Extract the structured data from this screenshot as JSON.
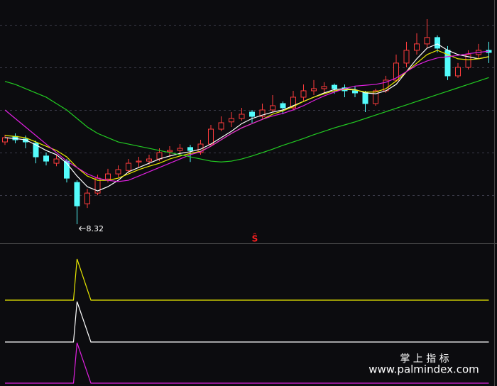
{
  "chart_data": {
    "type": "candlestick",
    "ylim": [
      7.87,
      13.58
    ],
    "grid_lines": [
      9,
      10,
      11,
      12,
      13
    ],
    "up_color": "#ff3c3c",
    "down_color": "#54fcfc",
    "candles": [
      [
        10.25,
        10.42,
        10.18,
        10.35
      ],
      [
        10.38,
        10.45,
        10.22,
        10.3
      ],
      [
        10.32,
        10.4,
        10.1,
        10.25
      ],
      [
        10.22,
        10.28,
        9.75,
        9.9
      ],
      [
        9.92,
        10.0,
        9.7,
        9.8
      ],
      [
        9.75,
        9.95,
        9.68,
        9.85
      ],
      [
        9.8,
        9.85,
        9.3,
        9.4
      ],
      [
        9.3,
        9.35,
        8.32,
        8.75
      ],
      [
        8.8,
        9.15,
        8.7,
        9.05
      ],
      [
        9.05,
        9.48,
        9.0,
        9.4
      ],
      [
        9.38,
        9.62,
        9.3,
        9.5
      ],
      [
        9.5,
        9.7,
        9.42,
        9.6
      ],
      [
        9.58,
        9.85,
        9.52,
        9.75
      ],
      [
        9.78,
        9.9,
        9.65,
        9.8
      ],
      [
        9.8,
        9.95,
        9.72,
        9.85
      ],
      [
        9.85,
        10.1,
        9.8,
        10.0
      ],
      [
        10.02,
        10.15,
        9.9,
        10.05
      ],
      [
        10.05,
        10.2,
        9.95,
        10.1
      ],
      [
        10.12,
        10.18,
        9.78,
        10.05
      ],
      [
        10.0,
        10.3,
        9.95,
        10.2
      ],
      [
        10.2,
        10.65,
        10.15,
        10.55
      ],
      [
        10.55,
        10.85,
        10.5,
        10.7
      ],
      [
        10.72,
        10.95,
        10.6,
        10.8
      ],
      [
        10.8,
        11.05,
        10.75,
        10.9
      ],
      [
        10.95,
        11.0,
        10.7,
        10.85
      ],
      [
        10.85,
        11.15,
        10.8,
        11.0
      ],
      [
        11.0,
        11.35,
        10.95,
        11.1
      ],
      [
        11.15,
        11.2,
        10.9,
        11.05
      ],
      [
        11.05,
        11.45,
        11.0,
        11.3
      ],
      [
        11.3,
        11.6,
        11.2,
        11.45
      ],
      [
        11.45,
        11.7,
        11.35,
        11.5
      ],
      [
        11.5,
        11.65,
        11.4,
        11.55
      ],
      [
        11.58,
        11.62,
        11.38,
        11.5
      ],
      [
        11.52,
        11.6,
        11.3,
        11.45
      ],
      [
        11.45,
        11.55,
        11.3,
        11.4
      ],
      [
        11.42,
        11.45,
        10.95,
        11.15
      ],
      [
        11.15,
        11.5,
        11.1,
        11.45
      ],
      [
        11.45,
        11.8,
        11.4,
        11.7
      ],
      [
        11.7,
        12.3,
        11.65,
        12.1
      ],
      [
        12.1,
        12.6,
        12.0,
        12.4
      ],
      [
        12.4,
        12.8,
        12.3,
        12.55
      ],
      [
        12.55,
        13.13,
        12.45,
        12.7
      ],
      [
        12.7,
        12.75,
        12.35,
        12.45
      ],
      [
        12.4,
        12.5,
        11.7,
        11.8
      ],
      [
        11.8,
        12.1,
        11.75,
        12.0
      ],
      [
        12.0,
        12.4,
        11.95,
        12.3
      ],
      [
        12.3,
        12.55,
        12.2,
        12.4
      ],
      [
        12.4,
        12.6,
        12.1,
        12.35
      ]
    ],
    "moving_averages": [
      {
        "color": "#ffffff",
        "values": [
          10.35,
          10.33,
          10.3,
          10.18,
          10.05,
          9.95,
          9.75,
          9.45,
          9.2,
          9.1,
          9.2,
          9.35,
          9.55,
          9.65,
          9.75,
          9.85,
          9.92,
          9.98,
          10.02,
          10.08,
          10.2,
          10.35,
          10.5,
          10.68,
          10.8,
          10.88,
          10.95,
          11.0,
          11.1,
          11.2,
          11.3,
          11.4,
          11.48,
          11.5,
          11.48,
          11.4,
          11.38,
          11.45,
          11.6,
          11.9,
          12.2,
          12.45,
          12.55,
          12.4,
          12.3,
          12.25,
          12.2,
          12.25
        ]
      },
      {
        "color": "#e8e800",
        "values": [
          10.4,
          10.38,
          10.35,
          10.25,
          10.15,
          10.05,
          9.9,
          9.65,
          9.45,
          9.35,
          9.35,
          9.4,
          9.5,
          9.6,
          9.68,
          9.75,
          9.85,
          9.92,
          9.98,
          10.03,
          10.15,
          10.3,
          10.45,
          10.58,
          10.68,
          10.78,
          10.9,
          10.98,
          11.08,
          11.2,
          11.3,
          11.38,
          11.45,
          11.48,
          11.47,
          11.42,
          11.42,
          11.5,
          11.68,
          11.9,
          12.1,
          12.3,
          12.4,
          12.3,
          12.2,
          12.18,
          12.2,
          12.25
        ]
      },
      {
        "color": "#e020e0",
        "values": [
          11.0,
          10.8,
          10.6,
          10.4,
          10.2,
          10.0,
          9.8,
          9.65,
          9.5,
          9.4,
          9.35,
          9.32,
          9.35,
          9.45,
          9.55,
          9.65,
          9.75,
          9.85,
          9.95,
          10.02,
          10.15,
          10.3,
          10.45,
          10.58,
          10.68,
          10.78,
          10.86,
          10.92,
          11.0,
          11.1,
          11.22,
          11.33,
          11.42,
          11.5,
          11.56,
          11.58,
          11.6,
          11.65,
          11.75,
          11.9,
          12.05,
          12.15,
          12.22,
          12.25,
          12.28,
          12.32,
          12.35,
          12.38
        ]
      },
      {
        "color": "#22cc22",
        "values": [
          11.67,
          11.6,
          11.5,
          11.4,
          11.3,
          11.15,
          11.0,
          10.8,
          10.6,
          10.45,
          10.35,
          10.25,
          10.2,
          10.15,
          10.1,
          10.05,
          10.0,
          9.95,
          9.9,
          9.85,
          9.8,
          9.78,
          9.8,
          9.85,
          9.92,
          10.0,
          10.08,
          10.17,
          10.25,
          10.33,
          10.42,
          10.5,
          10.58,
          10.65,
          10.72,
          10.8,
          10.88,
          10.96,
          11.04,
          11.12,
          11.2,
          11.28,
          11.36,
          11.44,
          11.52,
          11.6,
          11.68,
          11.76
        ]
      }
    ],
    "low_value": 8.32,
    "signal_marker": "Ŝ",
    "signal_ylim": [
      0,
      1
    ],
    "signals": [
      {
        "color": "#e8e800",
        "values": [
          0,
          0,
          0,
          0,
          0,
          0,
          0,
          1,
          0,
          0,
          0,
          0,
          0,
          0,
          0,
          0,
          0,
          0,
          0,
          0,
          0,
          0,
          0,
          0,
          0,
          0,
          0,
          0,
          0,
          0,
          0,
          0,
          0,
          0,
          0,
          0,
          0,
          0,
          0,
          0,
          0,
          0,
          0,
          0,
          0,
          0,
          0,
          0
        ]
      },
      {
        "color": "#ffffff",
        "values": [
          0,
          0,
          0,
          0,
          0,
          0,
          0,
          1,
          0,
          0,
          0,
          0,
          0,
          0,
          0,
          0,
          0,
          0,
          0,
          0,
          0,
          0,
          0,
          0,
          0,
          0,
          0,
          0,
          0,
          0,
          0,
          0,
          0,
          0,
          0,
          0,
          0,
          0,
          0,
          0,
          0,
          0,
          0,
          0,
          0,
          0,
          0,
          0
        ]
      },
      {
        "color": "#e020e0",
        "values": [
          0,
          0,
          0,
          0,
          0,
          0,
          0,
          1,
          0,
          0,
          0,
          0,
          0,
          0,
          0,
          0,
          0,
          0,
          0,
          0,
          0,
          0,
          0,
          0,
          0,
          0,
          0,
          0,
          0,
          0,
          0,
          0,
          0,
          0,
          0,
          0,
          0,
          0,
          0,
          0,
          0,
          0,
          0,
          0,
          0,
          0,
          0,
          0
        ]
      }
    ],
    "watermark": {
      "title": "掌 上 指 标",
      "url": "www.palmindex.com"
    }
  }
}
